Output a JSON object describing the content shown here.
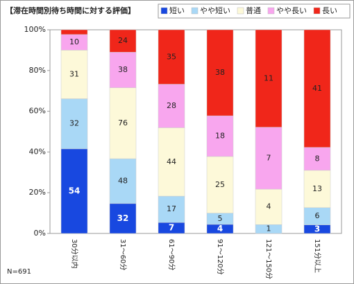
{
  "chart_data": {
    "type": "bar",
    "stacked": "percent",
    "title": "【滞在時間別待ち時間に対する評価】",
    "note": "N=691",
    "categories": [
      "30分以内",
      "31～60分",
      "61～90分",
      "91～120分",
      "121～150分",
      "151分以上"
    ],
    "series": [
      {
        "name": "短い",
        "color": "#1848e0",
        "values": [
          54,
          32,
          7,
          4,
          0,
          3
        ]
      },
      {
        "name": "やや短い",
        "color": "#a9d8f6",
        "values": [
          32,
          48,
          17,
          5,
          1,
          6
        ]
      },
      {
        "name": "普通",
        "color": "#fdf9d9",
        "values": [
          31,
          76,
          44,
          25,
          4,
          13
        ]
      },
      {
        "name": "やや長い",
        "color": "#f8a6ee",
        "values": [
          10,
          38,
          28,
          18,
          7,
          8
        ]
      },
      {
        "name": "長い",
        "color": "#f0261a",
        "values": [
          3,
          24,
          35,
          38,
          11,
          41
        ]
      }
    ],
    "ylim": [
      0,
      100
    ],
    "yticks": [
      {
        "value": 0,
        "label": "0%"
      },
      {
        "value": 20,
        "label": "20%"
      },
      {
        "value": 40,
        "label": "40%"
      },
      {
        "value": 60,
        "label": "60%"
      },
      {
        "value": 80,
        "label": "80%"
      },
      {
        "value": 100,
        "label": "100%"
      }
    ],
    "grid": false,
    "legend": "top-right"
  }
}
